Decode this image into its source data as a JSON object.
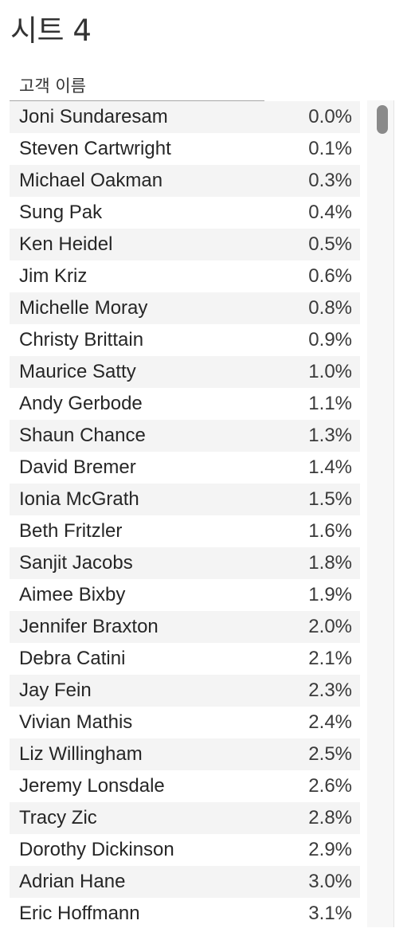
{
  "sheet": {
    "title": "시트 4"
  },
  "table": {
    "column_header": "고객 이름",
    "rows": [
      {
        "name": "Joni Sundaresam",
        "value": "0.0%"
      },
      {
        "name": "Steven Cartwright",
        "value": "0.1%"
      },
      {
        "name": "Michael Oakman",
        "value": "0.3%"
      },
      {
        "name": "Sung Pak",
        "value": "0.4%"
      },
      {
        "name": "Ken Heidel",
        "value": "0.5%"
      },
      {
        "name": "Jim Kriz",
        "value": "0.6%"
      },
      {
        "name": "Michelle Moray",
        "value": "0.8%"
      },
      {
        "name": "Christy Brittain",
        "value": "0.9%"
      },
      {
        "name": "Maurice Satty",
        "value": "1.0%"
      },
      {
        "name": "Andy Gerbode",
        "value": "1.1%"
      },
      {
        "name": "Shaun Chance",
        "value": "1.3%"
      },
      {
        "name": "David Bremer",
        "value": "1.4%"
      },
      {
        "name": "Ionia McGrath",
        "value": "1.5%"
      },
      {
        "name": "Beth Fritzler",
        "value": "1.6%"
      },
      {
        "name": "Sanjit Jacobs",
        "value": "1.8%"
      },
      {
        "name": "Aimee Bixby",
        "value": "1.9%"
      },
      {
        "name": "Jennifer Braxton",
        "value": "2.0%"
      },
      {
        "name": "Debra Catini",
        "value": "2.1%"
      },
      {
        "name": "Jay Fein",
        "value": "2.3%"
      },
      {
        "name": "Vivian Mathis",
        "value": "2.4%"
      },
      {
        "name": "Liz Willingham",
        "value": "2.5%"
      },
      {
        "name": "Jeremy Lonsdale",
        "value": "2.6%"
      },
      {
        "name": "Tracy Zic",
        "value": "2.8%"
      },
      {
        "name": "Dorothy Dickinson",
        "value": "2.9%"
      },
      {
        "name": "Adrian Hane",
        "value": "3.0%"
      },
      {
        "name": "Eric Hoffmann",
        "value": "3.1%"
      }
    ]
  },
  "colors": {
    "row_band": "#f4f4f4",
    "scroll_thumb": "#8a8a8a"
  }
}
